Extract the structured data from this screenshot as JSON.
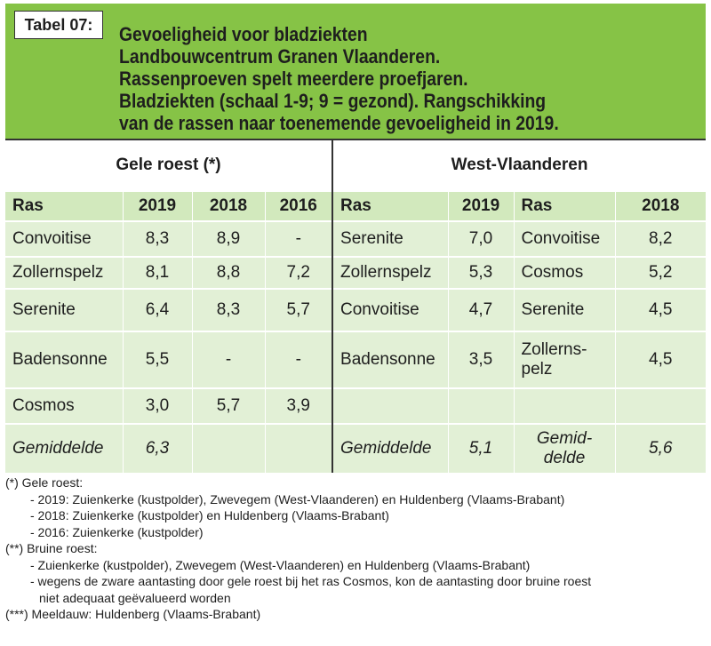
{
  "header": {
    "tag": "Tabel 07:",
    "title_lines": [
      "Gevoeligheid voor bladziekten",
      "Landbouwcentrum Granen Vlaanderen.",
      "Rassenproeven spelt meerdere proefjaren.",
      "Bladziekten (schaal 1-9; 9 = gezond). Rangschikking",
      "van de rassen naar toenemende gevoeligheid in 2019."
    ]
  },
  "table": {
    "group_left": "Gele roest (*)",
    "group_right": "West-Vlaanderen",
    "cols": [
      "Ras",
      "2019",
      "2018",
      "2016",
      "Ras",
      "2019",
      "Ras",
      "2018"
    ],
    "rows": [
      [
        "Convoitise",
        "8,3",
        "8,9",
        "-",
        "Serenite",
        "7,0",
        "Convoitise",
        "8,2"
      ],
      [
        "Zollernspelz",
        "8,1",
        "8,8",
        "7,2",
        "Zollernspelz",
        "5,3",
        "Cosmos",
        "5,2"
      ],
      [
        "Serenite",
        "6,4",
        "8,3",
        "5,7",
        "Convoitise",
        "4,7",
        "Serenite",
        "4,5"
      ],
      [
        "Badensonne",
        "5,5",
        "-",
        "-",
        "Badensonne",
        "3,5",
        "Zollerns-",
        "4,5"
      ],
      [
        "Cosmos",
        "3,0",
        "5,7",
        "3,9",
        "",
        "",
        "",
        ""
      ]
    ],
    "row4_extra": "pelz",
    "avg": [
      "Gemiddelde",
      "6,3",
      "",
      "",
      "Gemiddelde",
      "5,1",
      "Gemid-",
      "5,6"
    ],
    "avg_extra": "delde"
  },
  "notes": {
    "n1": "(*)  Gele roest:",
    "n1a": "- 2019: Zuienkerke (kustpolder), Zwevegem (West-Vlaanderen) en Huldenberg (Vlaams-Brabant)",
    "n1b": "- 2018: Zuienkerke (kustpolder) en Huldenberg (Vlaams-Brabant)",
    "n1c": "- 2016: Zuienkerke (kustpolder)",
    "n2": "(**)  Bruine roest:",
    "n2a": "- Zuienkerke (kustpolder), Zwevegem (West-Vlaanderen) en Huldenberg (Vlaams-Brabant)",
    "n2b": "- wegens de zware aantasting door gele roest bij het ras Cosmos, kon de aantasting door bruine roest",
    "n2c": "niet adequaat geëvalueerd worden",
    "n3": "(***) Meeldauw: Huldenberg (Vlaams-Brabant)"
  },
  "colors": {
    "header_green": "#86c346",
    "column_header_bg": "#d2e9bd",
    "row_bg": "#e2f0d6"
  }
}
